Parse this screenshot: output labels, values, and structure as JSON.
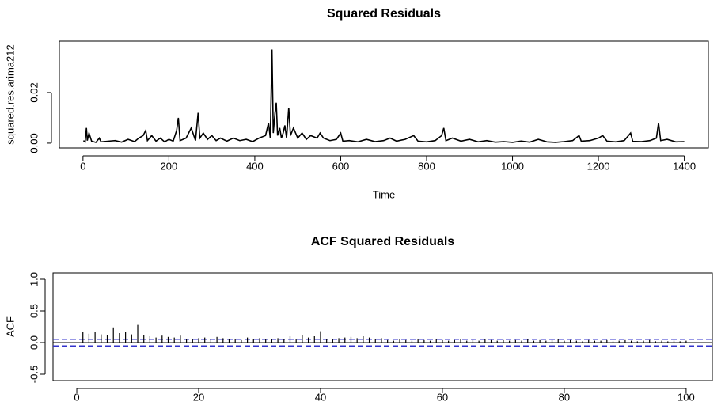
{
  "chart_data": [
    {
      "type": "line",
      "title": "Squared Residuals",
      "xlabel": "Time",
      "ylabel": "squared.res.arima212",
      "color": "#000000",
      "x": [
        1,
        5,
        8,
        10,
        14,
        20,
        30,
        38,
        42,
        60,
        75,
        90,
        105,
        120,
        130,
        140,
        146,
        150,
        160,
        170,
        180,
        190,
        200,
        210,
        218,
        222,
        226,
        240,
        252,
        258,
        262,
        268,
        272,
        280,
        290,
        300,
        310,
        320,
        335,
        350,
        365,
        380,
        395,
        410,
        425,
        432,
        436,
        440,
        443,
        447,
        450,
        453,
        458,
        462,
        466,
        470,
        474,
        479,
        483,
        490,
        500,
        510,
        520,
        530,
        545,
        552,
        560,
        575,
        590,
        600,
        605,
        620,
        640,
        660,
        680,
        700,
        715,
        730,
        750,
        770,
        780,
        800,
        820,
        835,
        840,
        845,
        860,
        880,
        900,
        920,
        940,
        960,
        980,
        1000,
        1020,
        1040,
        1060,
        1080,
        1100,
        1120,
        1140,
        1155,
        1160,
        1180,
        1200,
        1210,
        1220,
        1240,
        1260,
        1275,
        1280,
        1300,
        1320,
        1335,
        1340,
        1345,
        1360,
        1380,
        1400
      ],
      "values": [
        0.001,
        0.0005,
        0.006,
        0.001,
        0.004,
        0.0008,
        0.0003,
        0.002,
        0.0005,
        0.0008,
        0.001,
        0.0004,
        0.0015,
        0.0006,
        0.002,
        0.003,
        0.005,
        0.001,
        0.003,
        0.0008,
        0.002,
        0.0005,
        0.0015,
        0.0008,
        0.005,
        0.01,
        0.001,
        0.002,
        0.006,
        0.003,
        0.001,
        0.012,
        0.002,
        0.004,
        0.0015,
        0.003,
        0.001,
        0.002,
        0.0008,
        0.002,
        0.001,
        0.0015,
        0.0006,
        0.002,
        0.003,
        0.008,
        0.002,
        0.037,
        0.004,
        0.012,
        0.016,
        0.003,
        0.006,
        0.002,
        0.004,
        0.007,
        0.002,
        0.014,
        0.003,
        0.006,
        0.002,
        0.004,
        0.0015,
        0.003,
        0.002,
        0.004,
        0.002,
        0.001,
        0.0015,
        0.004,
        0.0008,
        0.001,
        0.0005,
        0.0015,
        0.0006,
        0.001,
        0.002,
        0.0008,
        0.0015,
        0.003,
        0.0008,
        0.0005,
        0.001,
        0.003,
        0.006,
        0.001,
        0.002,
        0.0008,
        0.0015,
        0.0005,
        0.001,
        0.0004,
        0.0006,
        0.0003,
        0.0008,
        0.0004,
        0.0015,
        0.0005,
        0.0003,
        0.0006,
        0.001,
        0.003,
        0.0008,
        0.001,
        0.002,
        0.003,
        0.0008,
        0.0005,
        0.001,
        0.004,
        0.0007,
        0.0006,
        0.001,
        0.002,
        0.008,
        0.001,
        0.0015,
        0.0005,
        0.0006
      ],
      "xlim": [
        -55,
        1456
      ],
      "xticks": [
        0,
        200,
        400,
        600,
        800,
        1000,
        1200,
        1400
      ],
      "ylim": [
        -0.0019,
        0.0403
      ],
      "yticks": [
        {
          "value": 0,
          "label": "0.00"
        },
        {
          "value": 0.02,
          "label": "0.02"
        }
      ]
    },
    {
      "type": "acf",
      "title": "ACF Squared Residuals",
      "ylabel": "ACF",
      "color": "#000000",
      "ci": 0.053,
      "ci_color": "#3333cc",
      "x": [
        1,
        2,
        3,
        4,
        5,
        6,
        7,
        8,
        9,
        10,
        11,
        12,
        13,
        14,
        15,
        16,
        17,
        18,
        19,
        20,
        21,
        22,
        23,
        24,
        25,
        26,
        27,
        28,
        29,
        30,
        31,
        32,
        33,
        34,
        35,
        36,
        37,
        38,
        39,
        40,
        41,
        42,
        43,
        44,
        45,
        46,
        47,
        48,
        49,
        50,
        51,
        52,
        53,
        54,
        55,
        56,
        57,
        58,
        59,
        60,
        61,
        62,
        63,
        64,
        65,
        66,
        67,
        68,
        69,
        70,
        71,
        72,
        73,
        74,
        75,
        76,
        77,
        78,
        79,
        80,
        81,
        82,
        83,
        84,
        85,
        86,
        87,
        88,
        89,
        90,
        91,
        92,
        93,
        94,
        95,
        96,
        97,
        98,
        99,
        100
      ],
      "values": [
        0.17,
        0.14,
        0.17,
        0.13,
        0.12,
        0.24,
        0.15,
        0.17,
        0.13,
        0.28,
        0.12,
        0.1,
        0.08,
        0.11,
        0.09,
        0.08,
        0.11,
        0.06,
        0.05,
        0.07,
        0.08,
        0.06,
        0.09,
        0.07,
        0.05,
        0.06,
        0.04,
        0.08,
        0.06,
        0.07,
        0.05,
        0.06,
        0.07,
        0.05,
        0.1,
        0.06,
        0.12,
        0.08,
        0.1,
        0.18,
        0.06,
        0.05,
        0.07,
        0.08,
        0.09,
        0.07,
        0.1,
        0.08,
        0.06,
        0.07,
        0.04,
        0.03,
        0.05,
        0.04,
        0.03,
        0.06,
        0.04,
        0.03,
        0.05,
        0.04,
        0.03,
        0.04,
        0.05,
        0.03,
        0.04,
        0.03,
        0.05,
        0.04,
        0.03,
        0.04,
        0.03,
        0.04,
        0.03,
        0.05,
        0.03,
        0.04,
        0.03,
        0.04,
        0.05,
        0.03,
        0.04,
        0.03,
        0.02,
        0.04,
        0.03,
        0.03,
        0.04,
        0.02,
        0.03,
        0.04,
        0.03,
        0.02,
        0.03,
        0.04,
        0.02,
        0.03,
        0.02,
        0.03,
        0.02,
        0.03
      ],
      "xlim": [
        -3.9,
        104.3
      ],
      "xticks": [
        0,
        20,
        40,
        60,
        80,
        100
      ],
      "ylim": [
        -0.6,
        1.1
      ],
      "yticks": [
        {
          "value": -0.5,
          "label": "-0.5"
        },
        {
          "value": 0,
          "label": "0.0"
        },
        {
          "value": 0.5,
          "label": "0.5"
        },
        {
          "value": 1,
          "label": "1.0"
        }
      ]
    }
  ]
}
